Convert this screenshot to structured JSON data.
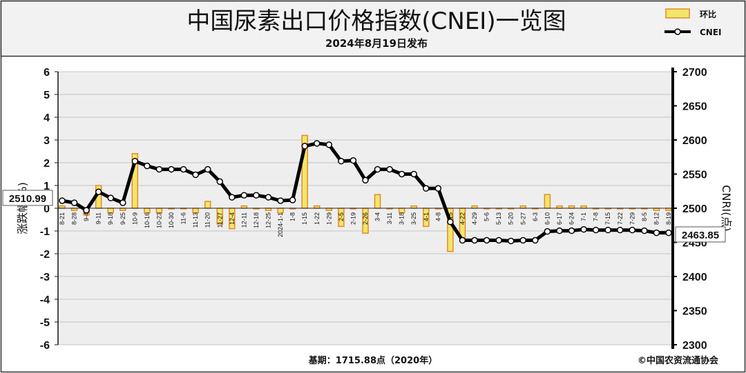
{
  "chart_data": {
    "type": "bar+line",
    "title": "中国尿素出口价格指数(CNEI)一览图",
    "subtitle": "2024年8月19日发布",
    "ylabel_left": "涨跌幅(%)",
    "ylabel_right": "CNRI(点)",
    "ylim_left": [
      -6,
      6
    ],
    "ylim_right": [
      2300,
      2700
    ],
    "yticks_left": [
      "6",
      "5",
      "4",
      "3",
      "2",
      "1",
      "0",
      "-1",
      "-2",
      "-3",
      "-4",
      "-5",
      "-6"
    ],
    "yticks_right": [
      "2700",
      "2650",
      "2600",
      "2550",
      "2500",
      "2450",
      "2400",
      "2350",
      "2300"
    ],
    "grid": true,
    "legend_position": "top-right",
    "colors": {
      "bar_fill": "#f2e56a",
      "bar_edge": "#e48a2a",
      "line": "#000000",
      "marker_fill": "#ffffff"
    },
    "legend": [
      {
        "name": "环比",
        "type": "bar"
      },
      {
        "name": "CNEI",
        "type": "line"
      }
    ],
    "categories": [
      "8-21",
      "8-28",
      "9-4",
      "9-11",
      "9-18",
      "9-25",
      "10-9",
      "10-16",
      "10-23",
      "10-30",
      "11-6",
      "11-13",
      "11-20",
      "11-27",
      "12-4",
      "12-11",
      "12-18",
      "12-25",
      "2024-1-1",
      "1-8",
      "1-15",
      "1-22",
      "1-29",
      "2-5",
      "2-19",
      "2-26",
      "3-4",
      "3-11",
      "3-18",
      "3-25",
      "4-1",
      "4-8",
      "4-15",
      "4-22",
      "4-29",
      "5-6",
      "5-13",
      "5-20",
      "5-27",
      "6-3",
      "6-10",
      "6-17",
      "6-24",
      "7-1",
      "7-8",
      "7-15",
      "7-22",
      "7-29",
      "8-5",
      "8-12",
      "8-19"
    ],
    "series": [
      {
        "name": "环比",
        "values": [
          0.1,
          -0.1,
          -0.3,
          1.0,
          -0.2,
          -0.1,
          2.4,
          -0.2,
          -0.2,
          0.0,
          0.0,
          -0.2,
          0.3,
          -0.7,
          -0.9,
          0.1,
          0.0,
          -0.1,
          -0.2,
          0.0,
          3.2,
          0.1,
          -0.1,
          -0.8,
          0.0,
          -1.1,
          0.6,
          0.0,
          -0.2,
          0.1,
          -0.8,
          0.0,
          -1.9,
          -1.3,
          0.1,
          0.0,
          0.0,
          0.0,
          0.1,
          0.0,
          0.6,
          0.1,
          0.1,
          0.1,
          0.0,
          0.0,
          0.0,
          0.0,
          0.0,
          -0.1,
          -0.1
        ]
      },
      {
        "name": "CNEI",
        "values": [
          2511,
          2508,
          2497,
          2524,
          2515,
          2508,
          2569,
          2562,
          2557,
          2557,
          2557,
          2549,
          2557,
          2539,
          2516,
          2519,
          2519,
          2516,
          2511,
          2512,
          2591,
          2595,
          2593,
          2569,
          2570,
          2541,
          2557,
          2557,
          2550,
          2550,
          2529,
          2529,
          2480,
          2453,
          2453,
          2453,
          2453,
          2452,
          2453,
          2453,
          2466,
          2467,
          2467,
          2469,
          2468,
          2468,
          2468,
          2468,
          2467,
          2464,
          2464
        ]
      }
    ],
    "callouts": {
      "first_value": "2510.99",
      "last_value": "2463.85"
    },
    "footnote_base": "基期：1715.88点（2020年）",
    "footnote_source": "©中国农资流通协会"
  }
}
